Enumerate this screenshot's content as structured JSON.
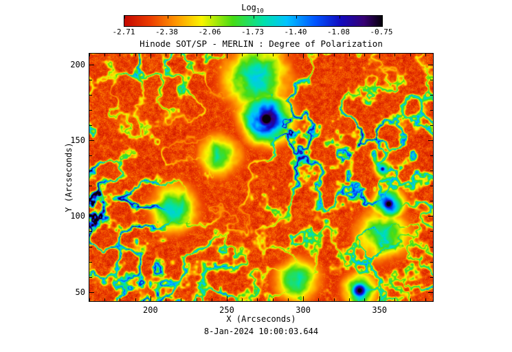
{
  "colorbar": {
    "label_main": "Log",
    "label_sub": "10"
  },
  "timestamp": "8-Jan-2024 10:00:03.644",
  "chart_data": {
    "type": "heatmap",
    "title": "Hinode SOT/SP - MERLIN : Degree of Polarization",
    "xlabel": "X (Arcseconds)",
    "ylabel": "Y (Arcseconds)",
    "x_range": [
      160,
      385
    ],
    "y_range": [
      44,
      207
    ],
    "x_ticks": [
      200,
      250,
      300,
      350
    ],
    "y_ticks": [
      50,
      100,
      150,
      200
    ],
    "colorbar_ticks": [
      "-2.71",
      "-2.38",
      "-2.06",
      "-1.73",
      "-1.40",
      "-1.08",
      "-0.75"
    ],
    "value_scale": "log10 degree of polarization",
    "value_min": -2.71,
    "value_max": -0.75,
    "colormap": [
      {
        "t": 0.0,
        "c": [
          196,
          8,
          0
        ]
      },
      {
        "t": 0.1,
        "c": [
          236,
          60,
          0
        ]
      },
      {
        "t": 0.2,
        "c": [
          255,
          150,
          0
        ]
      },
      {
        "t": 0.3,
        "c": [
          250,
          245,
          0
        ]
      },
      {
        "t": 0.42,
        "c": [
          70,
          220,
          20
        ]
      },
      {
        "t": 0.54,
        "c": [
          0,
          225,
          170
        ]
      },
      {
        "t": 0.63,
        "c": [
          0,
          195,
          255
        ]
      },
      {
        "t": 0.74,
        "c": [
          0,
          85,
          255
        ]
      },
      {
        "t": 0.84,
        "c": [
          18,
          10,
          190
        ]
      },
      {
        "t": 0.93,
        "c": [
          55,
          0,
          115
        ]
      },
      {
        "t": 1.0,
        "c": [
          5,
          0,
          10
        ]
      }
    ],
    "features": [
      {
        "name": "sunspot-main",
        "x": 276,
        "y": 164,
        "core_r": 8,
        "core_amp": 1.15,
        "halo_r": 16,
        "halo_amp": 0.8
      },
      {
        "name": "plage-patch-above-spot",
        "x": 270,
        "y": 191,
        "core_r": 0,
        "core_amp": 0,
        "halo_r": 22,
        "halo_amp": 0.5
      },
      {
        "name": "pore-east",
        "x": 356,
        "y": 108,
        "core_r": 5,
        "core_amp": 1.1,
        "halo_r": 10,
        "halo_amp": 0.7
      },
      {
        "name": "pore-small-east",
        "x": 352,
        "y": 131,
        "core_r": 2.5,
        "core_amp": 0.95,
        "halo_r": 6,
        "halo_amp": 0.55
      },
      {
        "name": "pore-south",
        "x": 337,
        "y": 51,
        "core_r": 6,
        "core_amp": 1.05,
        "halo_r": 11,
        "halo_amp": 0.6
      },
      {
        "name": "network-patch-west",
        "x": 215,
        "y": 105,
        "core_r": 0,
        "core_amp": 0,
        "halo_r": 16,
        "halo_amp": 0.5
      },
      {
        "name": "network-patch-east",
        "x": 352,
        "y": 88,
        "core_r": 0,
        "core_amp": 0,
        "halo_r": 18,
        "halo_amp": 0.45
      },
      {
        "name": "network-patch-center",
        "x": 246,
        "y": 140,
        "core_r": 0,
        "core_amp": 0,
        "halo_r": 14,
        "halo_amp": 0.45
      },
      {
        "name": "network-patch-south",
        "x": 296,
        "y": 58,
        "core_r": 0,
        "core_amp": 0,
        "halo_r": 15,
        "halo_amp": 0.45
      }
    ]
  }
}
